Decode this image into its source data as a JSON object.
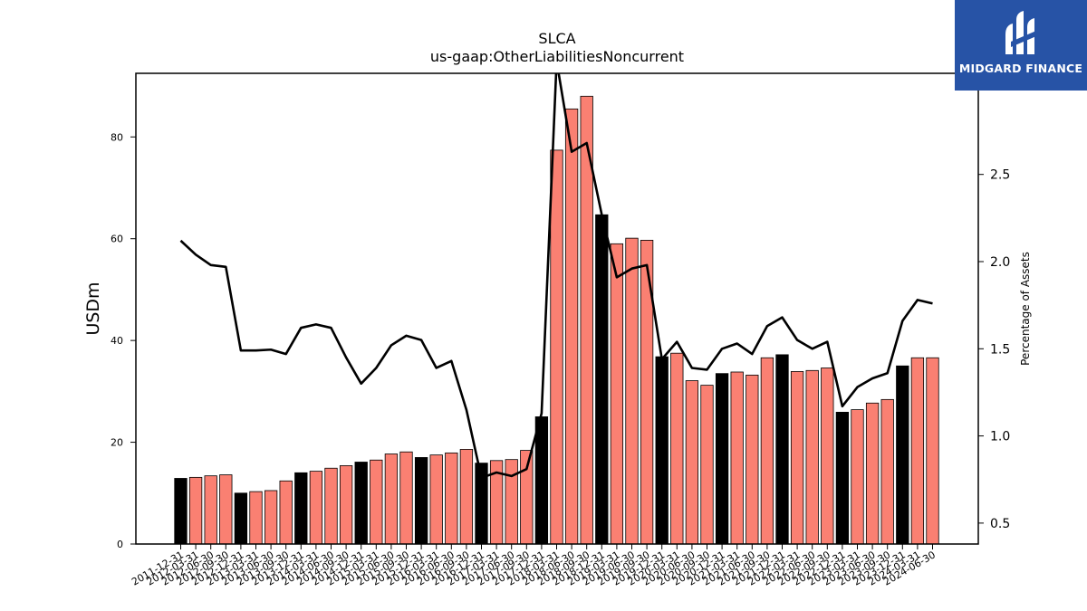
{
  "brand": {
    "name": "MIDGARD FINANCE",
    "color": "#2753a6"
  },
  "chart_data": {
    "type": "bar",
    "title": "SLCA",
    "subtitle": "us-gaap:OtherLiabilitiesNoncurrent",
    "ylabel": "USDm",
    "ylabel_right": "Percentage of Assets",
    "ylim": [
      0,
      92.5
    ],
    "ylim_right": [
      0.38,
      3.08
    ],
    "yticks": [
      0,
      20,
      40,
      60,
      80
    ],
    "yticks_right": [
      0.5,
      1.0,
      1.5,
      2.0,
      2.5
    ],
    "yticks_right_labels": [
      "0.5",
      "1.0",
      "1.5",
      "2.0",
      "2.5"
    ],
    "colors": {
      "annual_bar": "#000000",
      "quarter_bar": "#fa8072",
      "line": "#000000"
    },
    "categories": [
      "2011-12-31",
      "2012-03-31",
      "2012-06-30",
      "2012-09-30",
      "2012-12-31",
      "2013-03-31",
      "2013-06-30",
      "2013-09-30",
      "2013-12-31",
      "2014-03-31",
      "2014-06-30",
      "2014-09-30",
      "2014-12-31",
      "2015-03-31",
      "2015-06-30",
      "2015-09-30",
      "2015-12-31",
      "2016-03-31",
      "2016-06-30",
      "2016-09-30",
      "2016-12-31",
      "2017-03-31",
      "2017-06-30",
      "2017-09-30",
      "2017-12-31",
      "2018-03-31",
      "2018-06-30",
      "2018-09-30",
      "2018-12-31",
      "2019-03-31",
      "2019-06-30",
      "2019-09-30",
      "2019-12-31",
      "2020-03-31",
      "2020-06-30",
      "2020-09-30",
      "2020-12-31",
      "2021-03-31",
      "2021-06-30",
      "2021-09-30",
      "2021-12-31",
      "2022-03-31",
      "2022-06-30",
      "2022-09-30",
      "2022-12-31",
      "2023-03-31",
      "2023-06-30",
      "2023-09-30",
      "2023-12-31",
      "2024-03-31",
      "2024-06-30"
    ],
    "series": [
      {
        "type": "bar",
        "values": [
          12.9,
          13.1,
          13.4,
          13.6,
          10.0,
          10.3,
          10.5,
          12.4,
          14.0,
          14.3,
          14.9,
          15.4,
          16.1,
          16.5,
          17.7,
          18.1,
          17.0,
          17.5,
          17.9,
          18.6,
          15.9,
          16.4,
          16.6,
          18.4,
          25.0,
          77.4,
          85.5,
          88.0,
          64.7,
          59.0,
          60.1,
          59.7,
          36.8,
          37.5,
          32.1,
          31.2,
          33.5,
          33.8,
          33.2,
          36.6,
          37.2,
          33.9,
          34.1,
          34.6,
          25.9,
          26.4,
          27.7,
          28.4,
          35.0,
          36.6,
          36.6
        ],
        "annual": [
          true,
          false,
          false,
          false,
          true,
          false,
          false,
          false,
          true,
          false,
          false,
          false,
          true,
          false,
          false,
          false,
          true,
          false,
          false,
          false,
          true,
          false,
          false,
          false,
          true,
          false,
          false,
          false,
          true,
          false,
          false,
          false,
          true,
          false,
          false,
          false,
          true,
          false,
          false,
          false,
          true,
          false,
          false,
          false,
          true,
          false,
          false,
          false,
          true,
          false,
          false
        ]
      },
      {
        "type": "line",
        "axis": "right",
        "values": [
          2.12,
          2.04,
          1.98,
          1.97,
          1.49,
          1.49,
          1.495,
          1.47,
          1.62,
          1.64,
          1.62,
          1.45,
          1.3,
          1.39,
          1.52,
          1.575,
          1.55,
          1.39,
          1.43,
          1.15,
          0.76,
          0.79,
          0.77,
          0.81,
          1.13,
          3.15,
          2.63,
          2.68,
          2.27,
          1.91,
          1.96,
          1.98,
          1.44,
          1.54,
          1.39,
          1.38,
          1.5,
          1.53,
          1.47,
          1.63,
          1.68,
          1.55,
          1.5,
          1.54,
          1.17,
          1.28,
          1.33,
          1.36,
          1.66,
          1.78,
          1.76
        ]
      }
    ]
  }
}
